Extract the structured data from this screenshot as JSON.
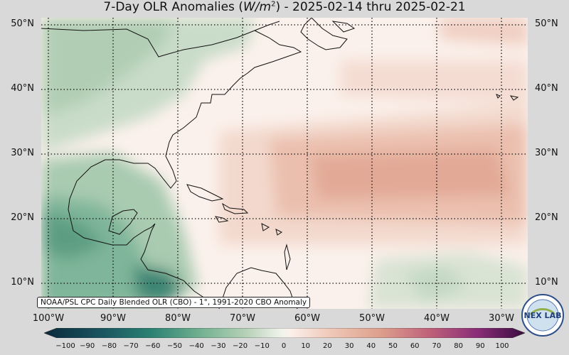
{
  "title_prefix": "7-Day OLR Anomalies (",
  "title_unit": "W/m",
  "title_sup": "2",
  "title_suffix": ") - 2025-02-14 thru 2025-02-21",
  "credit": "NOAA/PSL CPC Daily Blended OLR (CBO) - 1°, 1991-2020 CBO Anomaly",
  "lat_labels": [
    "50°N",
    "40°N",
    "30°N",
    "20°N",
    "10°N"
  ],
  "lon_labels": [
    "100°W",
    "90°W",
    "80°W",
    "70°W",
    "60°W",
    "50°W",
    "40°W",
    "30°W"
  ],
  "colorbar_ticks": [
    "−100",
    "−90",
    "−80",
    "−70",
    "−60",
    "−50",
    "−40",
    "−30",
    "−20",
    "−10",
    "0",
    "10",
    "20",
    "30",
    "40",
    "50",
    "60",
    "70",
    "80",
    "90",
    "100"
  ],
  "logo_text": "NEX LAB",
  "colors": {
    "neg_strong": "#1f6e63",
    "neg_mid": "#6fae8f",
    "neg_light": "#c9dcc9",
    "zero": "#fbf1ec",
    "pos_light": "#f1d2c6",
    "pos_mid": "#dd9f8c"
  }
}
